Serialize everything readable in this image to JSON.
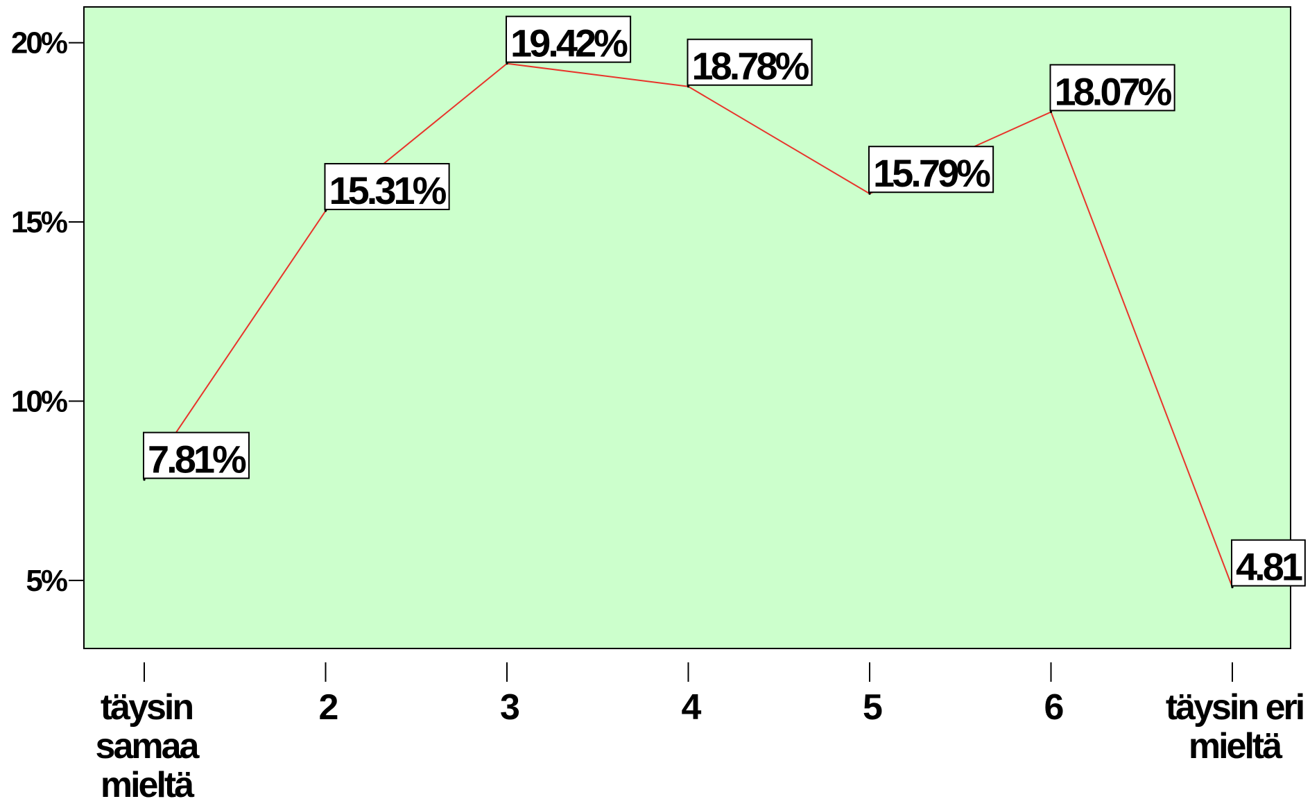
{
  "chart_data": {
    "type": "line",
    "categories": [
      [
        "täysin",
        "samaa",
        "mieltä"
      ],
      [
        "2"
      ],
      [
        "3"
      ],
      [
        "4"
      ],
      [
        "5"
      ],
      [
        "6"
      ],
      [
        "täysin eri",
        "mieltä"
      ]
    ],
    "values": [
      7.81,
      15.31,
      19.42,
      18.78,
      15.79,
      18.07,
      4.81
    ],
    "data_labels": [
      "7.81%",
      "15.31%",
      "19.42%",
      "18.78%",
      "15.79%",
      "18.07%",
      "4.81"
    ],
    "yticks": [
      {
        "value": 5,
        "label": "5%"
      },
      {
        "value": 10,
        "label": "10%"
      },
      {
        "value": 15,
        "label": "15%"
      },
      {
        "value": 20,
        "label": "20%"
      }
    ],
    "ylim": [
      3.1,
      21.0
    ],
    "title": "",
    "xlabel": "",
    "ylabel": "",
    "grid": false,
    "legend": "none",
    "colors": {
      "plot_background": "#ccffcc",
      "line": "#e8332a",
      "axis": "#000000",
      "label_box": "#ffffff"
    }
  }
}
